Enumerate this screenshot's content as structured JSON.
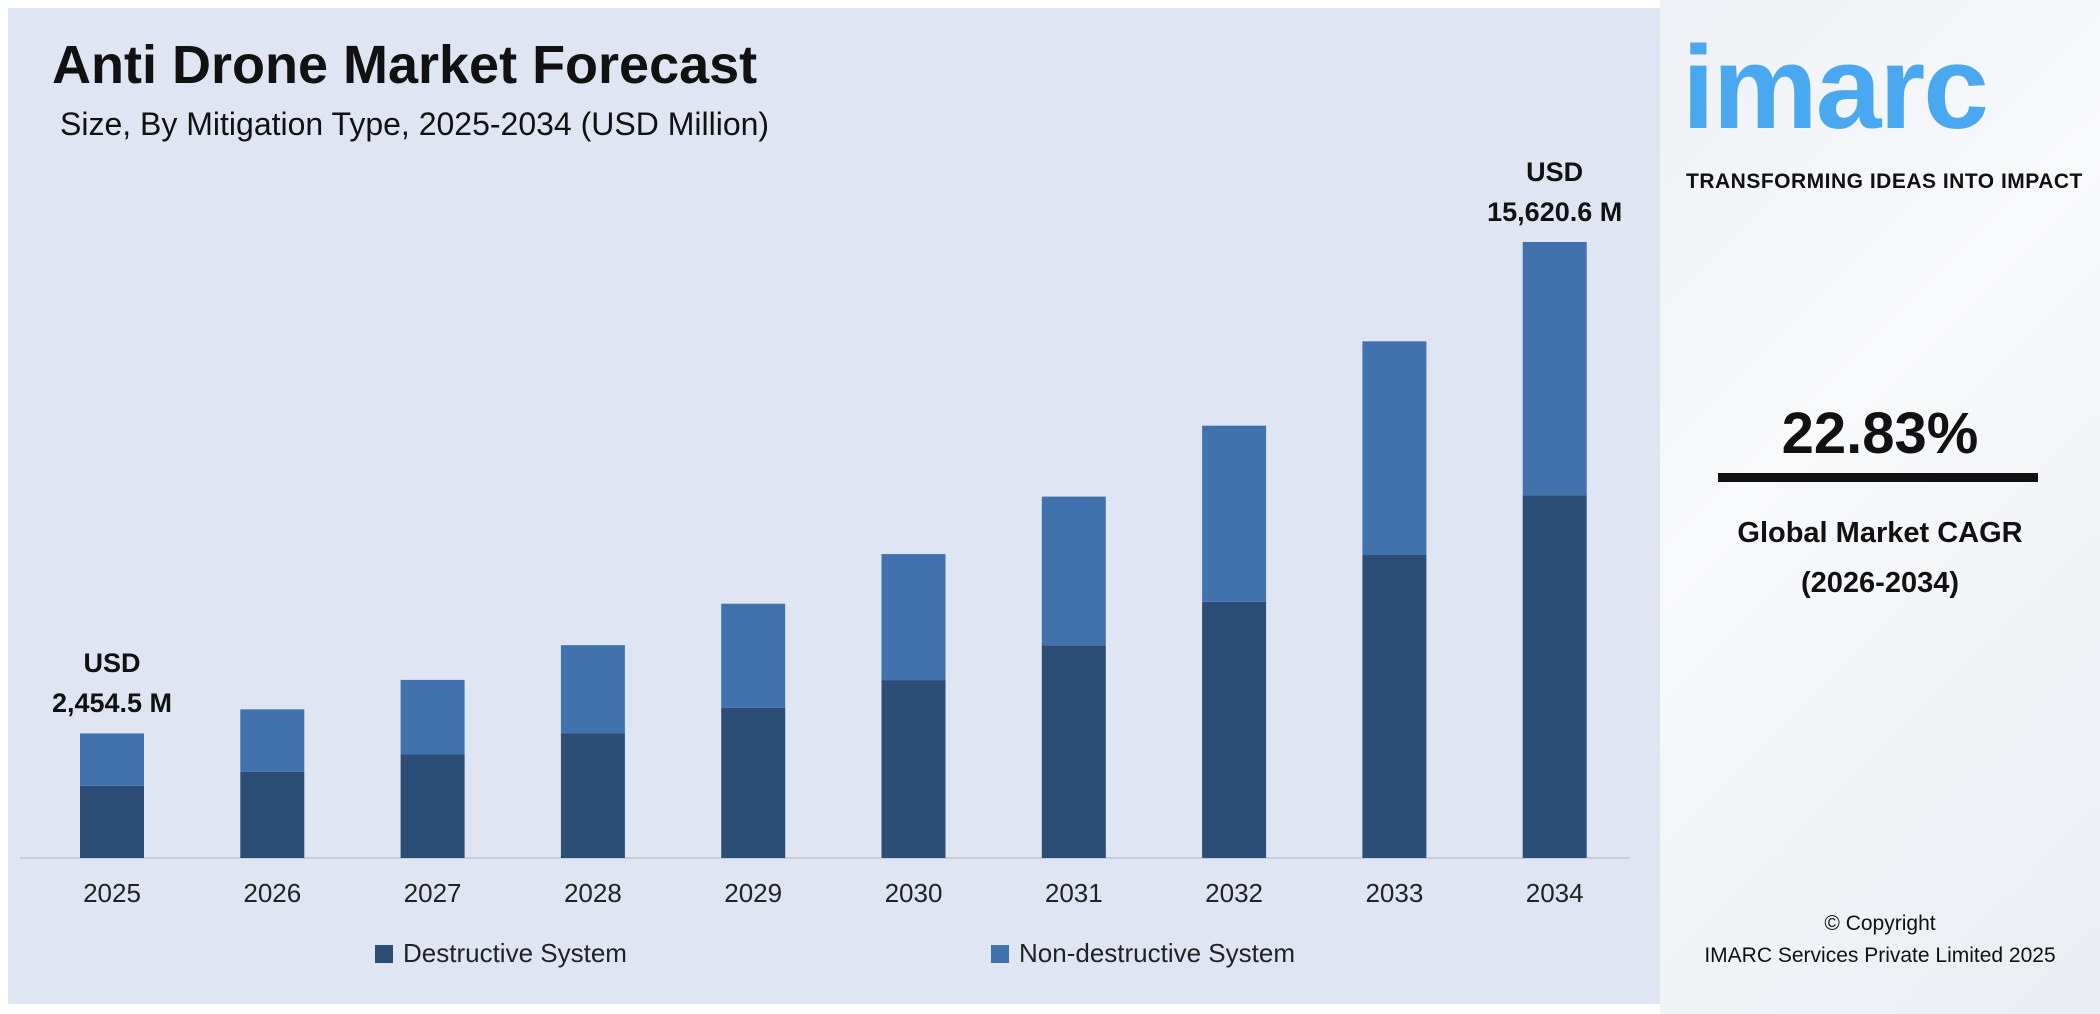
{
  "title": "Anti Drone Market Forecast",
  "subtitle": "Size, By Mitigation Type, 2025-2034 (USD Million)",
  "chart_data": {
    "type": "bar",
    "stacked": true,
    "categories": [
      "2025",
      "2026",
      "2027",
      "2028",
      "2029",
      "2030",
      "2031",
      "2032",
      "2033",
      "2034"
    ],
    "series": [
      {
        "name": "Destructive System",
        "color": "#2c4d75",
        "values": [
          1424,
          1800,
          2260,
          2820,
          3500,
          4250,
          5180,
          6340,
          7600,
          9200
        ]
      },
      {
        "name": "Non-destructive System",
        "color": "#4172ae",
        "values": [
          1030.5,
          1300,
          1630,
          2000,
          2430,
          3010,
          3620,
          4360,
          5360,
          6420.6
        ]
      }
    ],
    "annotations": [
      {
        "category": "2025",
        "line1": "USD",
        "line2": "2,454.5 M"
      },
      {
        "category": "2034",
        "line1": "USD",
        "line2": "15,620.6 M"
      }
    ],
    "legend_position": "bottom",
    "grid": false,
    "y_axis_visible": false
  },
  "side": {
    "logo": "imarc",
    "tagline": "TRANSFORMING IDEAS INTO IMPACT",
    "cagr_value": "22.83%",
    "cagr_label1": "Global Market CAGR",
    "cagr_label2": "(2026-2034)",
    "copyright1": "© Copyright",
    "copyright2": "IMARC Services Private Limited 2025"
  }
}
